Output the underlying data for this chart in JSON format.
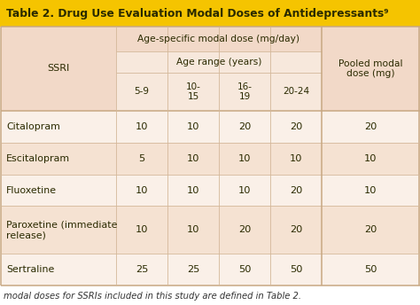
{
  "title": "Table 2. Drug Use Evaluation Modal Doses of Antidepressants⁹",
  "title_bg": "#F5C400",
  "title_text_color": "#2A2A00",
  "header_bg": "#F2D9C8",
  "header_inner_bg": "#F7E8DC",
  "row_bg_light": "#FAF0E8",
  "row_bg_mid": "#F5E2D2",
  "outer_bg": "#FFFFFF",
  "border_color": "#C8A882",
  "inner_line_color": "#D4B89A",
  "footnote": "modal doses for SSRIs included in this study are defined in Table 2.",
  "rows": [
    {
      "ssri": "Citalopram",
      "doses": [
        "10",
        "10",
        "20",
        "20"
      ],
      "pooled": "20"
    },
    {
      "ssri": "Escitalopram",
      "doses": [
        "5",
        "10",
        "10",
        "10"
      ],
      "pooled": "10"
    },
    {
      "ssri": "Fluoxetine",
      "doses": [
        "10",
        "10",
        "10",
        "20"
      ],
      "pooled": "10"
    },
    {
      "ssri": "Paroxetine (immediate\nrelease)",
      "doses": [
        "10",
        "10",
        "20",
        "20"
      ],
      "pooled": "20"
    },
    {
      "ssri": "Sertraline",
      "doses": [
        "25",
        "25",
        "50",
        "50"
      ],
      "pooled": "50"
    }
  ],
  "data_text_color": "#2A2A00",
  "header_text_color": "#2A2A00",
  "title_fontsize": 8.8,
  "header_fontsize": 8.0,
  "data_fontsize": 8.2,
  "footnote_fontsize": 7.2,
  "fig_w": 4.74,
  "fig_h": 3.44,
  "dpi": 100
}
